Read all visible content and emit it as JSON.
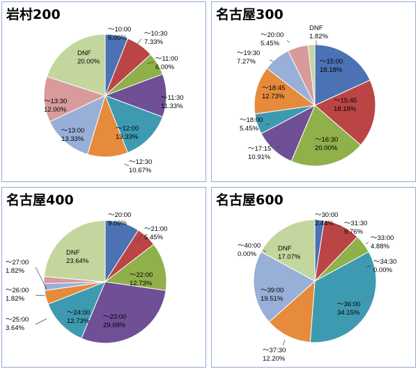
{
  "chart_data": [
    {
      "type": "pie",
      "title": "岩村200",
      "slices": [
        {
          "label": "～10:00",
          "pct_text": "6.00%",
          "value": 6.0,
          "color": "#4a72b4"
        },
        {
          "label": "～10:30",
          "pct_text": "7.33%",
          "value": 7.33,
          "color": "#bb4545"
        },
        {
          "label": "～11:00",
          "pct_text": "6.00%",
          "value": 6.0,
          "color": "#8fb04a"
        },
        {
          "label": "～11:30",
          "pct_text": "11.33%",
          "value": 11.33,
          "color": "#6f4f96"
        },
        {
          "label": "～12:00",
          "pct_text": "13.33%",
          "value": 13.33,
          "color": "#3e9ab0"
        },
        {
          "label": "～12:30",
          "pct_text": "10.67%",
          "value": 10.67,
          "color": "#e68a3c"
        },
        {
          "label": "～13:00",
          "pct_text": "13.33%",
          "value": 13.33,
          "color": "#98afd8"
        },
        {
          "label": "～13:30",
          "pct_text": "12.00%",
          "value": 12.0,
          "color": "#d89a9a"
        },
        {
          "label": "DNF",
          "pct_text": "20.00%",
          "value": 20.0,
          "color": "#c2d69e"
        }
      ]
    },
    {
      "type": "pie",
      "title": "名古屋300",
      "slices": [
        {
          "label": "～15:00",
          "pct_text": "18.18%",
          "value": 18.18,
          "color": "#4a72b4"
        },
        {
          "label": "～15:45",
          "pct_text": "18.18%",
          "value": 18.18,
          "color": "#bb4545"
        },
        {
          "label": "～16:30",
          "pct_text": "20.00%",
          "value": 20.0,
          "color": "#8fb04a"
        },
        {
          "label": "～17:15",
          "pct_text": "10.91%",
          "value": 10.91,
          "color": "#6f4f96"
        },
        {
          "label": "～18:00",
          "pct_text": "5.45%",
          "value": 5.45,
          "color": "#3e9ab0"
        },
        {
          "label": "～18:45",
          "pct_text": "12.73%",
          "value": 12.73,
          "color": "#e68a3c"
        },
        {
          "label": "～19:30",
          "pct_text": "7.27%",
          "value": 7.27,
          "color": "#98afd8"
        },
        {
          "label": "～20:00",
          "pct_text": "5.45%",
          "value": 5.45,
          "color": "#d89a9a"
        },
        {
          "label": "DNF",
          "pct_text": "1.82%",
          "value": 1.82,
          "color": "#c2d69e"
        }
      ]
    },
    {
      "type": "pie",
      "title": "名古屋400",
      "slices": [
        {
          "label": "～20:00",
          "pct_text": "9.09%",
          "value": 9.09,
          "color": "#4a72b4"
        },
        {
          "label": "～21:00",
          "pct_text": "5.45%",
          "value": 5.45,
          "color": "#bb4545"
        },
        {
          "label": "～22:00",
          "pct_text": "12.73%",
          "value": 12.73,
          "color": "#8fb04a"
        },
        {
          "label": "～23:00",
          "pct_text": "29.09%",
          "value": 29.09,
          "color": "#6f4f96"
        },
        {
          "label": "～24:00",
          "pct_text": "12.73%",
          "value": 12.73,
          "color": "#3e9ab0"
        },
        {
          "label": "～25:00",
          "pct_text": "3.64%",
          "value": 3.64,
          "color": "#e68a3c"
        },
        {
          "label": "～26:00",
          "pct_text": "1.82%",
          "value": 1.82,
          "color": "#98afd8"
        },
        {
          "label": "～27:00",
          "pct_text": "1.82%",
          "value": 1.82,
          "color": "#d89a9a"
        },
        {
          "label": "DNF",
          "pct_text": "23.64%",
          "value": 23.64,
          "color": "#c2d69e"
        }
      ]
    },
    {
      "type": "pie",
      "title": "名古屋600",
      "slices": [
        {
          "label": "～30:00",
          "pct_text": "2.44%",
          "value": 2.44,
          "color": "#4a72b4"
        },
        {
          "label": "～31:30",
          "pct_text": "9.76%",
          "value": 9.76,
          "color": "#bb4545"
        },
        {
          "label": "～33:00",
          "pct_text": "4.88%",
          "value": 4.88,
          "color": "#8fb04a"
        },
        {
          "label": "～34:30",
          "pct_text": "0.00%",
          "value": 0.0,
          "color": "#6f4f96"
        },
        {
          "label": "～36:00",
          "pct_text": "34.15%",
          "value": 34.15,
          "color": "#3e9ab0"
        },
        {
          "label": "～37:30",
          "pct_text": "12.20%",
          "value": 12.2,
          "color": "#e68a3c"
        },
        {
          "label": "～39:00",
          "pct_text": "19.51%",
          "value": 19.51,
          "color": "#98afd8"
        },
        {
          "label": "～40:00",
          "pct_text": "0.00%",
          "value": 0.0,
          "color": "#d89a9a"
        },
        {
          "label": "DNF",
          "pct_text": "17.07%",
          "value": 17.07,
          "color": "#c2d69e"
        }
      ]
    }
  ]
}
